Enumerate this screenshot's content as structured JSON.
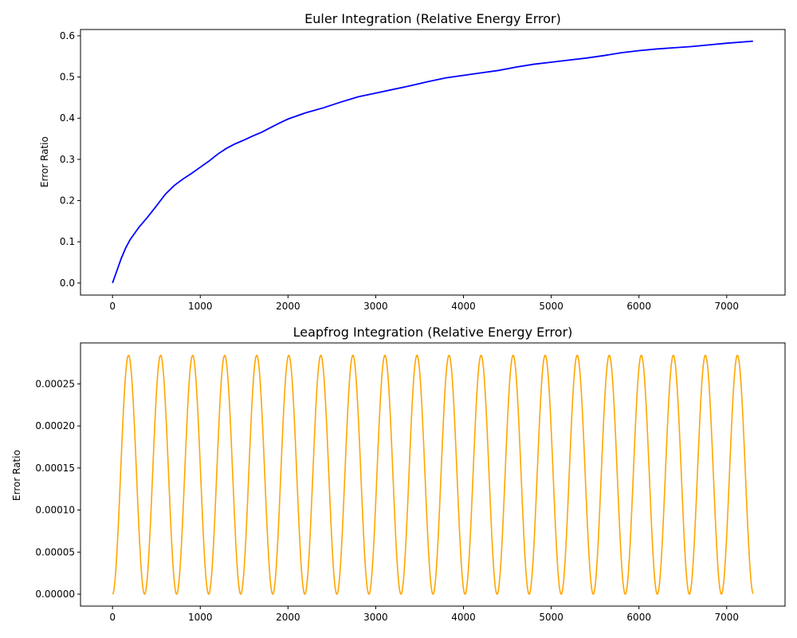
{
  "chart_data": [
    {
      "type": "line",
      "title": "Euler Integration (Relative Energy Error)",
      "xlabel": "",
      "ylabel": "Error Ratio",
      "xlim": [
        -365,
        7665
      ],
      "ylim": [
        -0.0293,
        0.6153
      ],
      "xticks": [
        "0",
        "1000",
        "2000",
        "3000",
        "4000",
        "5000",
        "6000",
        "7000"
      ],
      "yticks": [
        "0.0",
        "0.1",
        "0.2",
        "0.3",
        "0.4",
        "0.5",
        "0.6"
      ],
      "grid": false,
      "series": [
        {
          "color": "#0000ff",
          "x": [
            0,
            50,
            100,
            150,
            200,
            300,
            400,
            500,
            600,
            700,
            800,
            900,
            1000,
            1100,
            1200,
            1300,
            1400,
            1500,
            1600,
            1700,
            1800,
            1900,
            2000,
            2200,
            2400,
            2600,
            2800,
            3000,
            3200,
            3400,
            3600,
            3800,
            4000,
            4200,
            4400,
            4600,
            4800,
            5000,
            5200,
            5400,
            5600,
            5800,
            6000,
            6200,
            6400,
            6600,
            6800,
            7000,
            7300
          ],
          "y": [
            0.0,
            0.03,
            0.06,
            0.085,
            0.105,
            0.135,
            0.16,
            0.187,
            0.215,
            0.236,
            0.252,
            0.266,
            0.281,
            0.296,
            0.313,
            0.327,
            0.338,
            0.347,
            0.357,
            0.366,
            0.377,
            0.388,
            0.398,
            0.413,
            0.425,
            0.439,
            0.452,
            0.461,
            0.47,
            0.479,
            0.489,
            0.498,
            0.504,
            0.51,
            0.516,
            0.524,
            0.531,
            0.536,
            0.541,
            0.546,
            0.552,
            0.559,
            0.564,
            0.568,
            0.571,
            0.574,
            0.578,
            0.582,
            0.587
          ]
        }
      ]
    },
    {
      "type": "line",
      "title": "Leapfrog Integration (Relative Energy Error)",
      "xlabel": "",
      "ylabel": "Error Ratio",
      "xlim": [
        -365,
        7665
      ],
      "ylim": [
        -1.42e-05,
        0.0002987
      ],
      "xticks": [
        "0",
        "1000",
        "2000",
        "3000",
        "4000",
        "5000",
        "6000",
        "7000"
      ],
      "yticks": [
        "0.00000",
        "0.00005",
        "0.00010",
        "0.00015",
        "0.00020",
        "0.00025"
      ],
      "grid": false,
      "series": [
        {
          "color": "#ffa500",
          "function": "amplitude * sin^2(pi * x / period)",
          "amplitude": 0.000284,
          "period": 365.25,
          "x_range": [
            0,
            7300
          ]
        }
      ]
    }
  ]
}
